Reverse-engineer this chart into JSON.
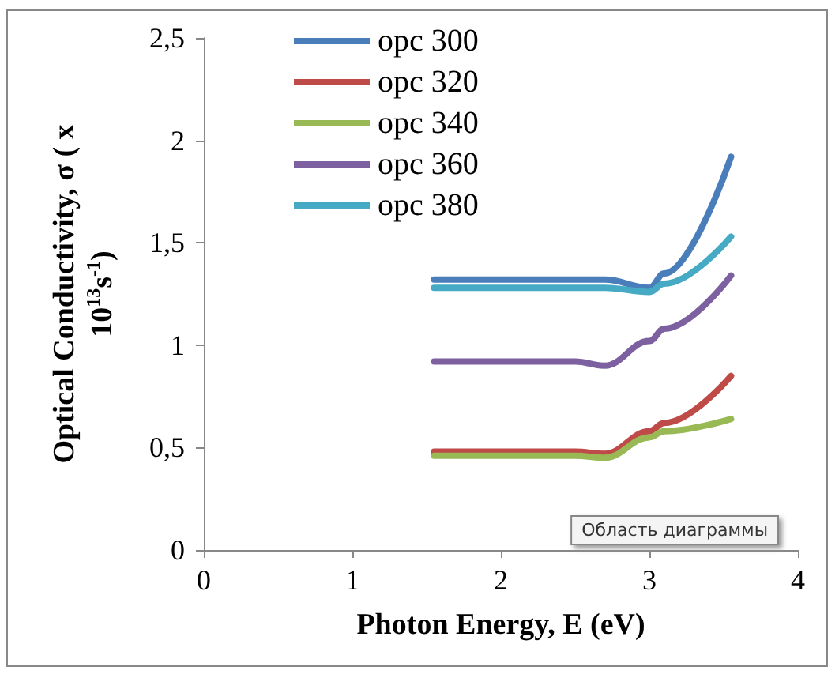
{
  "chart_data": {
    "type": "line",
    "xlabel": "Photon Energy, E (eV)",
    "ylabel": "Optical Conductivity, σ ( x 10$^{13}$s$^{-1}$)",
    "x": [
      1.55,
      2.0,
      2.5,
      2.7,
      3.0,
      3.1,
      3.55
    ],
    "series": [
      {
        "name": "opc 300",
        "color": "#4a7ebb",
        "values": [
          1.32,
          1.32,
          1.32,
          1.32,
          1.28,
          1.35,
          1.92
        ]
      },
      {
        "name": "opc 320",
        "color": "#be4b48",
        "values": [
          0.48,
          0.48,
          0.48,
          0.47,
          0.58,
          0.62,
          0.85
        ]
      },
      {
        "name": "opc 340",
        "color": "#98b954",
        "values": [
          0.46,
          0.46,
          0.46,
          0.45,
          0.55,
          0.58,
          0.64
        ]
      },
      {
        "name": "opc 360",
        "color": "#7d60a0",
        "values": [
          0.92,
          0.92,
          0.92,
          0.9,
          1.02,
          1.08,
          1.34
        ]
      },
      {
        "name": "opc 380",
        "color": "#46aac5",
        "values": [
          1.28,
          1.28,
          1.28,
          1.28,
          1.26,
          1.3,
          1.53
        ]
      }
    ],
    "xlim": [
      0,
      4
    ],
    "xticks": [
      0,
      1,
      2,
      3,
      4
    ],
    "ylim": [
      0,
      2.5
    ],
    "yticks": [
      0,
      {
        "value": 0.5,
        "label": "0,5"
      },
      1,
      {
        "value": 1.5,
        "label": "1,5"
      },
      2,
      {
        "value": 2.5,
        "label": "2,5"
      }
    ],
    "annotations": [
      "Область диаграммы"
    ],
    "grid": false,
    "legend": "top left",
    "marker": "none",
    "line_style": "solid"
  }
}
